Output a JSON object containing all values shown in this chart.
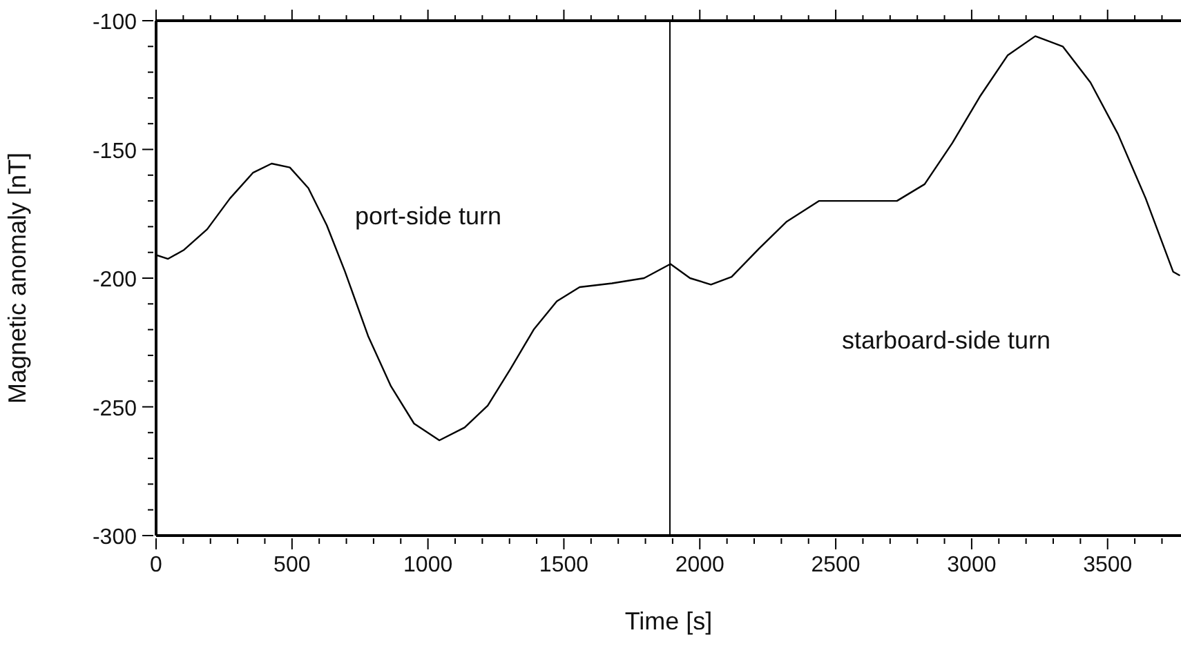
{
  "chart_data": {
    "type": "line",
    "xlabel": "Time [s]",
    "ylabel": "Magnetic anomaly [nT]",
    "x": [
      0,
      44,
      103,
      188,
      272,
      357,
      425,
      492,
      560,
      628,
      695,
      780,
      864,
      949,
      1042,
      1135,
      1220,
      1305,
      1389,
      1474,
      1558,
      1677,
      1795,
      1892,
      1964,
      2041,
      2117,
      2218,
      2320,
      2439,
      2589,
      2725,
      2827,
      2929,
      3030,
      3132,
      3234,
      3335,
      3437,
      3538,
      3640,
      3741,
      3766
    ],
    "series": [
      {
        "color": "#000000",
        "values": [
          -191,
          -192.5,
          -189,
          -181,
          -169,
          -159,
          -155.5,
          -157,
          -165,
          -179.5,
          -197.5,
          -222.5,
          -242,
          -256.5,
          -263,
          -258,
          -249.5,
          -235,
          -220,
          -209,
          -203.5,
          -202,
          -200,
          -194.5,
          -200,
          -202.5,
          -199.5,
          -188.5,
          -178,
          -170,
          -170,
          -170,
          -163.5,
          -147.5,
          -129.5,
          -113.5,
          -106,
          -110,
          -124,
          -144,
          -169,
          -197.5,
          -199
        ]
      }
    ],
    "xlim": [
      0,
      3770
    ],
    "xticks": [
      0,
      {
        "value": 100,
        "label": null
      },
      {
        "value": 200,
        "label": null
      },
      {
        "value": 300,
        "label": null
      },
      {
        "value": 400,
        "label": null
      },
      500,
      {
        "value": 600,
        "label": null
      },
      {
        "value": 700,
        "label": null
      },
      {
        "value": 800,
        "label": null
      },
      {
        "value": 900,
        "label": null
      },
      1000,
      {
        "value": 1100,
        "label": null
      },
      {
        "value": 1200,
        "label": null
      },
      {
        "value": 1300,
        "label": null
      },
      {
        "value": 1400,
        "label": null
      },
      1500,
      {
        "value": 1600,
        "label": null
      },
      {
        "value": 1700,
        "label": null
      },
      {
        "value": 1800,
        "label": null
      },
      {
        "value": 1900,
        "label": null
      },
      2000,
      {
        "value": 2100,
        "label": null
      },
      {
        "value": 2200,
        "label": null
      },
      {
        "value": 2300,
        "label": null
      },
      {
        "value": 2400,
        "label": null
      },
      2500,
      {
        "value": 2600,
        "label": null
      },
      {
        "value": 2700,
        "label": null
      },
      {
        "value": 2800,
        "label": null
      },
      {
        "value": 2900,
        "label": null
      },
      3000,
      {
        "value": 3100,
        "label": null
      },
      {
        "value": 3200,
        "label": null
      },
      {
        "value": 3300,
        "label": null
      },
      {
        "value": 3400,
        "label": null
      },
      3500,
      {
        "value": 3600,
        "label": null
      },
      {
        "value": 3700,
        "label": null
      }
    ],
    "ylim": [
      -300,
      -100
    ],
    "yticks": [
      -300,
      {
        "value": -290,
        "label": null
      },
      {
        "value": -280,
        "label": null
      },
      {
        "value": -270,
        "label": null
      },
      {
        "value": -260,
        "label": null
      },
      -250,
      {
        "value": -240,
        "label": null
      },
      {
        "value": -230,
        "label": null
      },
      {
        "value": -220,
        "label": null
      },
      {
        "value": -210,
        "label": null
      },
      -200,
      {
        "value": -190,
        "label": null
      },
      {
        "value": -180,
        "label": null
      },
      {
        "value": -170,
        "label": null
      },
      {
        "value": -160,
        "label": null
      },
      -150,
      {
        "value": -140,
        "label": null
      },
      {
        "value": -130,
        "label": null
      },
      {
        "value": -120,
        "label": null
      },
      {
        "value": -110,
        "label": null
      },
      -100
    ],
    "ref_lines": [
      {
        "axis": "x",
        "value": 1890,
        "color": "#000000"
      }
    ],
    "annotations": [
      "port-side turn",
      "starboard-side turn"
    ],
    "marker": "none",
    "line_style": "solid"
  }
}
